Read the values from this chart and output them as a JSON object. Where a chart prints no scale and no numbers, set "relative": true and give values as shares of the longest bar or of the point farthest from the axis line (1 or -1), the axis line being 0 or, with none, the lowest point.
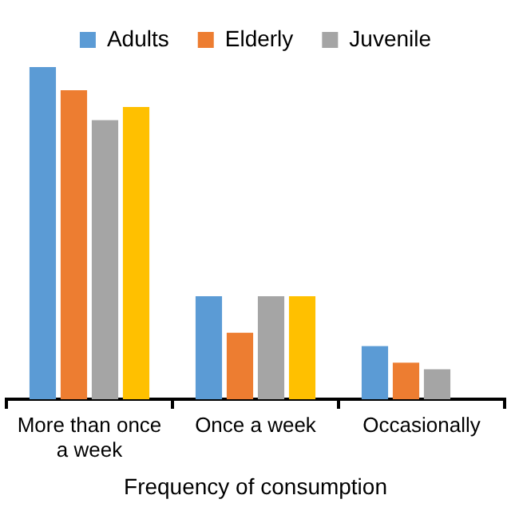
{
  "chart_data": {
    "type": "bar",
    "relative": true,
    "xlabel": "Frequency of consumption",
    "categories": [
      "More than once a week",
      "Once a week",
      "Occasionally"
    ],
    "series": [
      {
        "name": "Adults",
        "color": "#5b9bd5",
        "values": [
          1,
          0.31,
          0.16
        ]
      },
      {
        "name": "Elderly",
        "color": "#ed7d31",
        "values": [
          0.93,
          0.2,
          0.11
        ]
      },
      {
        "name": "Juvenile",
        "color": "#a5a5a5",
        "values": [
          0.84,
          0.31,
          0.09
        ]
      },
      {
        "color": "#ffc000",
        "values": [
          0.88,
          0.31,
          null
        ]
      }
    ],
    "legend": "top",
    "grid": false
  }
}
